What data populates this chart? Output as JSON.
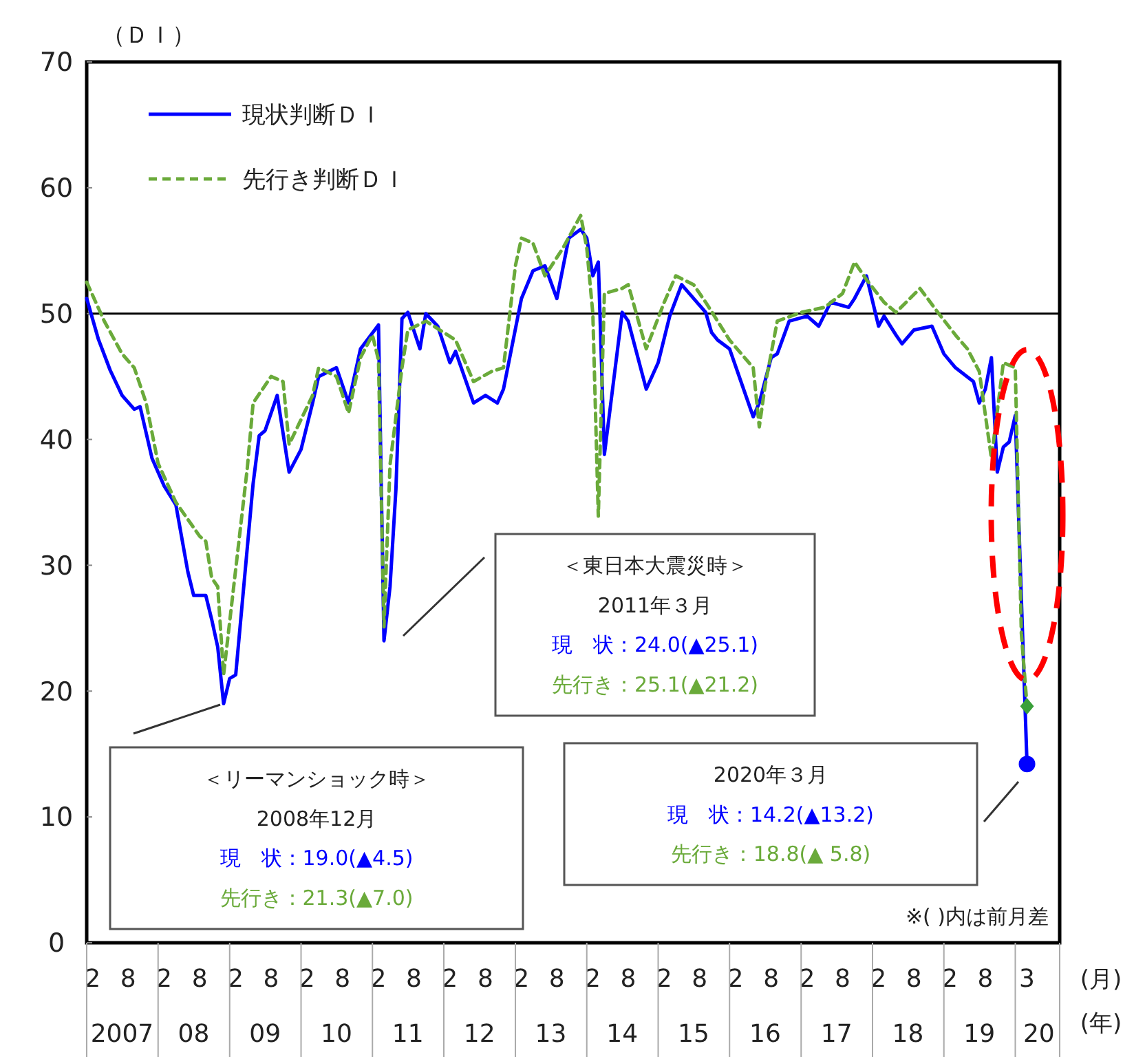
{
  "chart_data": {
    "type": "line",
    "ylabel": "（ＤＩ）",
    "xlabel": "(月)\n(年)",
    "xlim": [
      "2007-01-01",
      "2020-08-15"
    ],
    "ylim": [
      0,
      70
    ],
    "yticks": [
      0,
      10,
      20,
      30,
      40,
      50,
      60,
      70
    ],
    "xticks": [
      {
        "value": "2007-02",
        "label": "2"
      },
      {
        "value": "2007-08",
        "label": "8"
      },
      {
        "value": "2008-02",
        "label": "2"
      },
      {
        "value": "2008-08",
        "label": "8"
      },
      {
        "value": "2009-02",
        "label": "2"
      },
      {
        "value": "2009-08",
        "label": "8"
      },
      {
        "value": "2010-02",
        "label": "2"
      },
      {
        "value": "2010-08",
        "label": "8"
      },
      {
        "value": "2011-02",
        "label": "2"
      },
      {
        "value": "2011-08",
        "label": "8"
      },
      {
        "value": "2012-02",
        "label": "2"
      },
      {
        "value": "2012-08",
        "label": "8"
      },
      {
        "value": "2013-02",
        "label": "2"
      },
      {
        "value": "2013-08",
        "label": "8"
      },
      {
        "value": "2014-02",
        "label": "2"
      },
      {
        "value": "2014-08",
        "label": "8"
      },
      {
        "value": "2015-02",
        "label": "2"
      },
      {
        "value": "2015-08",
        "label": "8"
      },
      {
        "value": "2016-02",
        "label": "2"
      },
      {
        "value": "2016-08",
        "label": "8"
      },
      {
        "value": "2017-02",
        "label": "2"
      },
      {
        "value": "2017-08",
        "label": "8"
      },
      {
        "value": "2018-02",
        "label": "2"
      },
      {
        "value": "2018-08",
        "label": "8"
      },
      {
        "value": "2019-02",
        "label": "2"
      },
      {
        "value": "2019-08",
        "label": "8"
      },
      {
        "value": "2020-03",
        "label": "3"
      }
    ],
    "x2lim": [
      "2007-01-01",
      "2020-08-15"
    ],
    "x2ticks": [
      {
        "value": "2007-07-01",
        "label": "2007"
      },
      {
        "value": "2008-07-01",
        "label": "08"
      },
      {
        "value": "2009-07-01",
        "label": "09"
      },
      {
        "value": "2010-07-01",
        "label": "10"
      },
      {
        "value": "2011-07-01",
        "label": "11"
      },
      {
        "value": "2012-07-01",
        "label": "12"
      },
      {
        "value": "2013-07-01",
        "label": "13"
      },
      {
        "value": "2014-07-01",
        "label": "14"
      },
      {
        "value": "2015-07-01",
        "label": "15"
      },
      {
        "value": "2016-07-01",
        "label": "16"
      },
      {
        "value": "2017-07-01",
        "label": "17"
      },
      {
        "value": "2018-07-01",
        "label": "18"
      },
      {
        "value": "2019-07-01",
        "label": "19"
      },
      {
        "value": "2020-05-01",
        "label": "20"
      }
    ],
    "grid": false,
    "legend": "top left",
    "ref_lines": [
      {
        "axis": "y",
        "value": 50,
        "color": "#000000"
      }
    ],
    "series": [
      {
        "name": "現状判断ＤＩ",
        "color": "#0000ff",
        "line_style": "solid",
        "x": [
          "2007-01",
          "2007-03",
          "2007-05",
          "2007-07",
          "2007-09",
          "2007-10",
          "2007-12",
          "2008-02",
          "2008-04",
          "2008-06",
          "2008-07",
          "2008-09",
          "2008-10",
          "2008-11",
          "2008-12",
          "2009-01",
          "2009-02",
          "2009-05",
          "2009-06",
          "2009-07",
          "2009-09",
          "2009-11",
          "2010-01",
          "2010-03",
          "2010-04",
          "2010-07",
          "2010-09",
          "2010-11",
          "2011-02",
          "2011-03",
          "2011-04",
          "2011-05",
          "2011-06",
          "2011-07",
          "2011-09",
          "2011-10",
          "2011-12",
          "2012-02",
          "2012-03",
          "2012-06",
          "2012-08",
          "2012-10",
          "2012-11",
          "2013-02",
          "2013-04",
          "2013-06",
          "2013-08",
          "2013-10",
          "2013-12",
          "2014-01",
          "2014-02",
          "2014-03",
          "2014-04",
          "2014-07",
          "2014-08",
          "2014-11",
          "2015-01",
          "2015-03",
          "2015-05",
          "2015-09",
          "2015-10",
          "2015-11",
          "2016-01",
          "2016-05",
          "2016-06",
          "2016-08",
          "2016-09",
          "2016-11",
          "2017-02",
          "2017-04",
          "2017-06",
          "2017-09",
          "2017-10",
          "2017-12",
          "2018-02",
          "2018-03",
          "2018-05",
          "2018-06",
          "2018-08",
          "2018-11",
          "2019-01",
          "2019-03",
          "2019-06",
          "2019-07",
          "2019-08",
          "2019-09",
          "2019-10",
          "2019-11",
          "2019-12",
          "2020-01",
          "2020-02",
          "2020-03"
        ],
        "values": [
          51.2,
          48,
          45.5,
          43.5,
          42.4,
          42.6,
          38.5,
          36.3,
          34.8,
          29.5,
          27.6,
          27.6,
          25.7,
          23.5,
          19.0,
          21.0,
          21.3,
          36.5,
          40.3,
          40.7,
          43.5,
          37.4,
          39.2,
          42.9,
          45,
          45.7,
          42.9,
          47.2,
          49.1,
          24.0,
          28.3,
          36,
          49.6,
          50.1,
          47.2,
          50,
          49,
          46.1,
          47,
          42.9,
          43.5,
          42.9,
          44,
          51.2,
          53.4,
          53.8,
          51.2,
          56,
          56.7,
          56,
          53,
          54.1,
          38.8,
          50.1,
          49.4,
          44,
          46.1,
          49.8,
          52.3,
          50.1,
          48.5,
          47.9,
          47.2,
          41.8,
          42.9,
          46.5,
          46.8,
          49.4,
          49.8,
          49,
          50.9,
          50.5,
          51.2,
          53,
          49,
          49.8,
          48.3,
          47.6,
          48.7,
          49,
          46.8,
          45.7,
          44.6,
          42.9,
          44,
          46.5,
          37.4,
          39.4,
          39.8,
          41.9,
          27.4,
          14.2
        ]
      },
      {
        "name": "先行き判断ＤＩ",
        "color": "#6aaa3a",
        "line_style": "dashed",
        "x": [
          "2007-01",
          "2007-04",
          "2007-07",
          "2007-09",
          "2007-11",
          "2008-01",
          "2008-04",
          "2008-08",
          "2008-09",
          "2008-10",
          "2008-11",
          "2008-12",
          "2009-04",
          "2009-05",
          "2009-08",
          "2009-10",
          "2009-11",
          "2010-03",
          "2010-04",
          "2010-07",
          "2010-09",
          "2010-11",
          "2011-01",
          "2011-02",
          "2011-03",
          "2011-04",
          "2011-06",
          "2011-07",
          "2011-10",
          "2012-03",
          "2012-06",
          "2012-09",
          "2012-11",
          "2013-01",
          "2013-02",
          "2013-04",
          "2013-06",
          "2013-09",
          "2013-12",
          "2014-01",
          "2014-02",
          "2014-03",
          "2014-04",
          "2014-07",
          "2014-08",
          "2014-11",
          "2015-02",
          "2015-04",
          "2015-07",
          "2015-09",
          "2016-01",
          "2016-05",
          "2016-06",
          "2016-07",
          "2016-09",
          "2017-01",
          "2017-05",
          "2017-08",
          "2017-10",
          "2017-12",
          "2018-03",
          "2018-05",
          "2018-09",
          "2018-12",
          "2019-03",
          "2019-05",
          "2019-07",
          "2019-09",
          "2019-11",
          "2020-01",
          "2020-02",
          "2020-03"
        ],
        "values": [
          52.5,
          49.4,
          46.8,
          45.7,
          42.9,
          38.1,
          35,
          32.3,
          31.9,
          29,
          28.3,
          21.3,
          37.7,
          42.9,
          45,
          44.6,
          39.6,
          43.5,
          45.7,
          45,
          42.1,
          46.5,
          48.3,
          46.3,
          25.1,
          38,
          45.7,
          48.7,
          49.4,
          47.9,
          44.6,
          45.4,
          45.7,
          53.8,
          56,
          55.6,
          53,
          55.2,
          57.8,
          55.2,
          50,
          33.9,
          51.6,
          52,
          52.3,
          47.2,
          50.9,
          53,
          52.3,
          50.9,
          47.9,
          45.7,
          41,
          44.3,
          49.4,
          50.1,
          50.5,
          51.6,
          54.1,
          52.7,
          50.9,
          50.1,
          52,
          50.1,
          48.3,
          47.2,
          45.4,
          38.5,
          46.1,
          45.7,
          24.6,
          18.8
        ]
      },
      {
        "type": "scatter",
        "color": "#0000ff",
        "marker": "circle",
        "x": [
          "2020-03"
        ],
        "values": [
          14.2
        ]
      },
      {
        "type": "scatter",
        "color": "#3aa03a",
        "marker": "diamond",
        "x": [
          "2020-03"
        ],
        "values": [
          18.8
        ]
      }
    ],
    "annotations": [
      "＜リーマンショック時＞",
      "2008年12月",
      "現　状：19.0(▲4.5)",
      "先行き：21.3(▲7.0)",
      "＜東日本大震災時＞",
      "2011年３月",
      "現　状：24.0(▲25.1)",
      "先行き：25.1(▲21.2)",
      "2020年３月",
      "現　状：14.2(▲13.2)",
      "先行き：18.8(▲ 5.8)",
      "※( )内は前月差"
    ]
  }
}
